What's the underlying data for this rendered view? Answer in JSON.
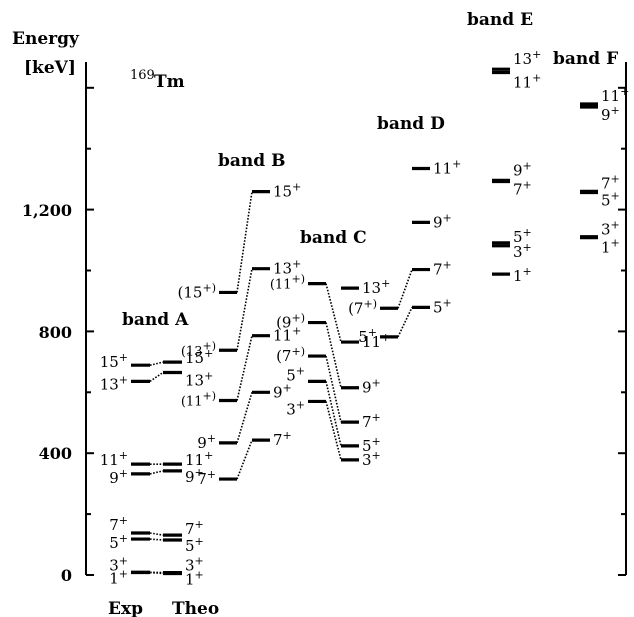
{
  "nucleus": {
    "mass": "169",
    "symbol": "Tm"
  },
  "axis": {
    "title_line1": "Energy",
    "title_line2": "[keV]",
    "ticks": [
      {
        "value": 0,
        "label": "0"
      },
      {
        "value": 400,
        "label": "400"
      },
      {
        "value": 800,
        "label": "800"
      },
      {
        "value": 1200,
        "label": "1,200"
      }
    ],
    "ylim": [
      0,
      1670
    ]
  },
  "columns": {
    "exp": "Exp",
    "theo": "Theo"
  },
  "bands": [
    {
      "id": "A",
      "name": "band A"
    },
    {
      "id": "B",
      "name": "band B"
    },
    {
      "id": "C",
      "name": "band C"
    },
    {
      "id": "D",
      "name": "band D"
    },
    {
      "id": "E",
      "name": "band E"
    },
    {
      "id": "F",
      "name": "band F"
    }
  ],
  "chart_data": {
    "type": "level_scheme",
    "levels": [
      {
        "id": "A_e_1",
        "band": "A",
        "column": "exp",
        "energy": 8,
        "spin": "1",
        "parity": "+"
      },
      {
        "id": "A_e_3",
        "band": "A",
        "column": "exp",
        "energy": 9,
        "spin": "3",
        "parity": "+"
      },
      {
        "id": "A_e_5",
        "band": "A",
        "column": "exp",
        "energy": 118,
        "spin": "5",
        "parity": "+"
      },
      {
        "id": "A_e_7",
        "band": "A",
        "column": "exp",
        "energy": 138,
        "spin": "7",
        "parity": "+"
      },
      {
        "id": "A_e_9",
        "band": "A",
        "column": "exp",
        "energy": 332,
        "spin": "9",
        "parity": "+"
      },
      {
        "id": "A_e_11",
        "band": "A",
        "column": "exp",
        "energy": 364,
        "spin": "11",
        "parity": "+"
      },
      {
        "id": "A_e_13",
        "band": "A",
        "column": "exp",
        "energy": 636,
        "spin": "13",
        "parity": "+"
      },
      {
        "id": "A_e_15",
        "band": "A",
        "column": "exp",
        "energy": 689,
        "spin": "15",
        "parity": "+"
      },
      {
        "id": "A_t_1",
        "band": "A",
        "column": "theo",
        "energy": 5,
        "spin": "1",
        "parity": "+"
      },
      {
        "id": "A_t_3",
        "band": "A",
        "column": "theo",
        "energy": 8,
        "spin": "3",
        "parity": "+"
      },
      {
        "id": "A_t_5",
        "band": "A",
        "column": "theo",
        "energy": 115,
        "spin": "5",
        "parity": "+"
      },
      {
        "id": "A_t_7",
        "band": "A",
        "column": "theo",
        "energy": 131,
        "spin": "7",
        "parity": "+"
      },
      {
        "id": "A_t_9",
        "band": "A",
        "column": "theo",
        "energy": 342,
        "spin": "9",
        "parity": "+"
      },
      {
        "id": "A_t_11",
        "band": "A",
        "column": "theo",
        "energy": 364,
        "spin": "11",
        "parity": "+"
      },
      {
        "id": "A_t_13",
        "band": "A",
        "column": "theo",
        "energy": 665,
        "spin": "13",
        "parity": "+"
      },
      {
        "id": "A_t_15",
        "band": "A",
        "column": "theo",
        "energy": 699,
        "spin": "15",
        "parity": "+"
      },
      {
        "id": "B_e_7",
        "band": "B",
        "column": "exp",
        "energy": 315,
        "spin": "7",
        "parity": "+"
      },
      {
        "id": "B_e_9",
        "band": "B",
        "column": "exp",
        "energy": 434,
        "spin": "9",
        "parity": "+"
      },
      {
        "id": "B_e_11",
        "band": "B",
        "column": "exp",
        "energy": 573,
        "spin": "(11",
        "parity": "+)"
      },
      {
        "id": "B_e_13",
        "band": "B",
        "column": "exp",
        "energy": 738,
        "spin": "(13",
        "parity": "+)"
      },
      {
        "id": "B_e_15",
        "band": "B",
        "column": "exp",
        "energy": 928,
        "spin": "(15",
        "parity": "+)"
      },
      {
        "id": "B_t_7",
        "band": "B",
        "column": "theo",
        "energy": 443,
        "spin": "7",
        "parity": "+"
      },
      {
        "id": "B_t_9",
        "band": "B",
        "column": "theo",
        "energy": 600,
        "spin": "9",
        "parity": "+"
      },
      {
        "id": "B_t_11",
        "band": "B",
        "column": "theo",
        "energy": 786,
        "spin": "11",
        "parity": "+"
      },
      {
        "id": "B_t_13",
        "band": "B",
        "column": "theo",
        "energy": 1006,
        "spin": "13",
        "parity": "+"
      },
      {
        "id": "B_t_15",
        "band": "B",
        "column": "theo",
        "energy": 1259,
        "spin": "15",
        "parity": "+"
      },
      {
        "id": "C_e_3",
        "band": "C",
        "column": "exp",
        "energy": 570,
        "spin": "3",
        "parity": "+"
      },
      {
        "id": "C_e_5",
        "band": "C",
        "column": "exp",
        "energy": 636,
        "spin": "5",
        "parity": "+"
      },
      {
        "id": "C_e_7",
        "band": "C",
        "column": "exp",
        "energy": 719,
        "spin": "(7",
        "parity": "+)"
      },
      {
        "id": "C_e_9",
        "band": "C",
        "column": "exp",
        "energy": 829,
        "spin": "(9",
        "parity": "+)"
      },
      {
        "id": "C_e_11",
        "band": "C",
        "column": "exp",
        "energy": 957,
        "spin": "(11",
        "parity": "+)"
      },
      {
        "id": "C_t_3",
        "band": "C",
        "column": "theo",
        "energy": 378,
        "spin": "3",
        "parity": "+"
      },
      {
        "id": "C_t_5",
        "band": "C",
        "column": "theo",
        "energy": 424,
        "spin": "5",
        "parity": "+"
      },
      {
        "id": "C_t_7",
        "band": "C",
        "column": "theo",
        "energy": 502,
        "spin": "7",
        "parity": "+"
      },
      {
        "id": "C_t_9",
        "band": "C",
        "column": "theo",
        "energy": 615,
        "spin": "9",
        "parity": "+"
      },
      {
        "id": "C_t_11",
        "band": "C",
        "column": "theo",
        "energy": 765,
        "spin": "11",
        "parity": "+"
      },
      {
        "id": "C_t_13",
        "band": "C",
        "column": "theo",
        "energy": 942,
        "spin": "13",
        "parity": "+"
      },
      {
        "id": "D_e_5",
        "band": "D",
        "column": "exp",
        "energy": 782,
        "spin": "5",
        "parity": "+"
      },
      {
        "id": "D_e_7",
        "band": "D",
        "column": "exp",
        "energy": 876,
        "spin": "(7",
        "parity": "+)"
      },
      {
        "id": "D_t_5",
        "band": "D",
        "column": "theo",
        "energy": 879,
        "spin": "5",
        "parity": "+"
      },
      {
        "id": "D_t_7",
        "band": "D",
        "column": "theo",
        "energy": 1003,
        "spin": "7",
        "parity": "+"
      },
      {
        "id": "D_t_9",
        "band": "D",
        "column": "theo",
        "energy": 1158,
        "spin": "9",
        "parity": "+"
      },
      {
        "id": "D_t_11",
        "band": "D",
        "column": "theo",
        "energy": 1335,
        "spin": "11",
        "parity": "+"
      },
      {
        "id": "E_t_1",
        "band": "E",
        "column": "theo",
        "energy": 988,
        "spin": "1",
        "parity": "+"
      },
      {
        "id": "E_t_3",
        "band": "E",
        "column": "theo",
        "energy": 1081,
        "spin": "3",
        "parity": "+"
      },
      {
        "id": "E_t_5",
        "band": "E",
        "column": "theo",
        "energy": 1091,
        "spin": "5",
        "parity": "+"
      },
      {
        "id": "E_t_7",
        "band": "E",
        "column": "theo",
        "energy": 1292,
        "spin": "7",
        "parity": "+"
      },
      {
        "id": "E_t_9",
        "band": "E",
        "column": "theo",
        "energy": 1296,
        "spin": "9",
        "parity": "+"
      },
      {
        "id": "E_t_11",
        "band": "E",
        "column": "theo",
        "energy": 1650,
        "spin": "11",
        "parity": "+"
      },
      {
        "id": "E_t_13",
        "band": "E",
        "column": "theo",
        "energy": 1661,
        "spin": "13",
        "parity": "+"
      },
      {
        "id": "F_t_1",
        "band": "F",
        "column": "theo",
        "energy": 1108,
        "spin": "1",
        "parity": "+"
      },
      {
        "id": "F_t_3",
        "band": "F",
        "column": "theo",
        "energy": 1111,
        "spin": "3",
        "parity": "+"
      },
      {
        "id": "F_t_5",
        "band": "F",
        "column": "theo",
        "energy": 1256,
        "spin": "5",
        "parity": "+"
      },
      {
        "id": "F_t_7",
        "band": "F",
        "column": "theo",
        "energy": 1260,
        "spin": "7",
        "parity": "+"
      },
      {
        "id": "F_t_9",
        "band": "F",
        "column": "theo",
        "energy": 1537,
        "spin": "9",
        "parity": "+"
      },
      {
        "id": "F_t_11",
        "band": "F",
        "column": "theo",
        "energy": 1547,
        "spin": "11",
        "parity": "+"
      }
    ]
  }
}
